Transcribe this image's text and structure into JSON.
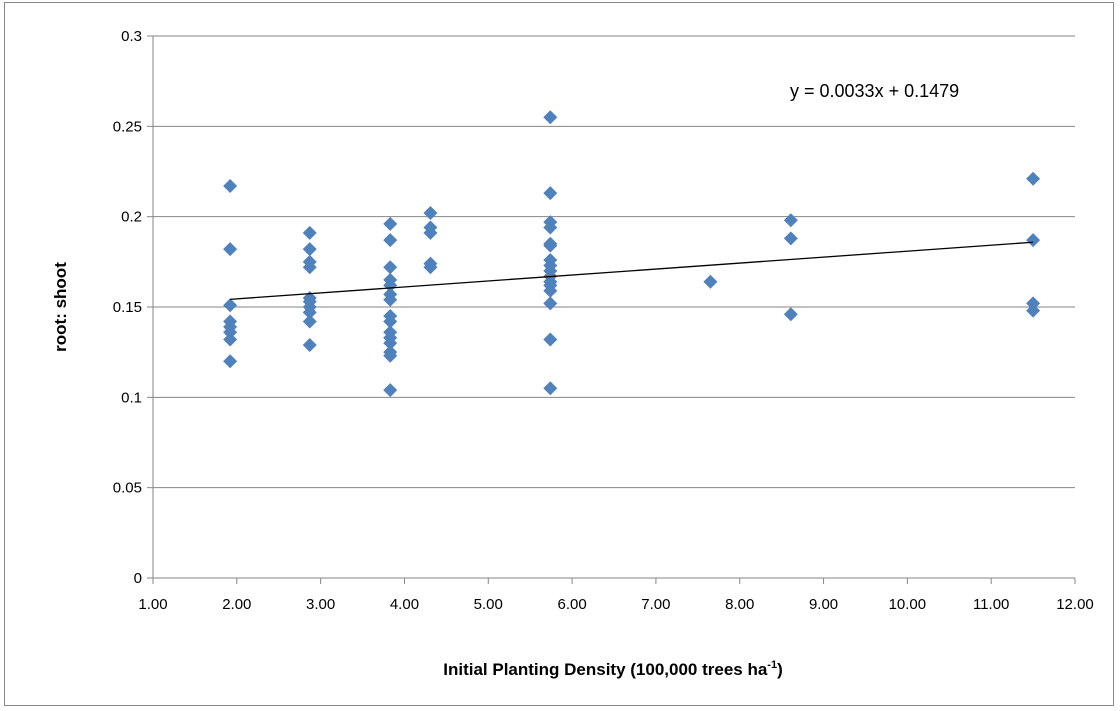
{
  "chart_data": {
    "type": "scatter",
    "title": "",
    "xlabel": {
      "main": "Initial Planting Density (100,000 trees ha",
      "superscript": "-1",
      "closing": ")"
    },
    "ylabel": "root: shoot",
    "xlim": [
      1.0,
      12.0
    ],
    "ylim": [
      0,
      0.3
    ],
    "x_ticks": [
      "1.00",
      "2.00",
      "3.00",
      "4.00",
      "5.00",
      "6.00",
      "7.00",
      "8.00",
      "9.00",
      "10.00",
      "11.00",
      "12.00"
    ],
    "y_ticks": [
      "0",
      "0.05",
      "0.1",
      "0.15",
      "0.2",
      "0.25",
      "0.3"
    ],
    "grid": "horizontal",
    "marker_color": "#4F81BD",
    "trendline": {
      "label": "y = 0.0033x + 0.1479",
      "slope": 0.0033,
      "intercept": 0.1479,
      "x_range": [
        1.92,
        11.5
      ],
      "color": "#000000"
    },
    "series": [
      {
        "points": [
          [
            1.92,
            0.217
          ],
          [
            1.92,
            0.182
          ],
          [
            1.92,
            0.151
          ],
          [
            1.92,
            0.142
          ],
          [
            1.92,
            0.139
          ],
          [
            1.92,
            0.136
          ],
          [
            1.92,
            0.132
          ],
          [
            1.92,
            0.12
          ],
          [
            2.87,
            0.191
          ],
          [
            2.87,
            0.182
          ],
          [
            2.87,
            0.175
          ],
          [
            2.87,
            0.172
          ],
          [
            2.87,
            0.155
          ],
          [
            2.87,
            0.153
          ],
          [
            2.87,
            0.15
          ],
          [
            2.87,
            0.147
          ],
          [
            2.87,
            0.142
          ],
          [
            2.87,
            0.129
          ],
          [
            3.83,
            0.196
          ],
          [
            3.83,
            0.187
          ],
          [
            3.83,
            0.172
          ],
          [
            3.83,
            0.165
          ],
          [
            3.83,
            0.162
          ],
          [
            3.83,
            0.157
          ],
          [
            3.83,
            0.154
          ],
          [
            3.83,
            0.145
          ],
          [
            3.83,
            0.142
          ],
          [
            3.83,
            0.136
          ],
          [
            3.83,
            0.133
          ],
          [
            3.83,
            0.13
          ],
          [
            3.83,
            0.125
          ],
          [
            3.83,
            0.123
          ],
          [
            3.83,
            0.104
          ],
          [
            4.31,
            0.202
          ],
          [
            4.31,
            0.194
          ],
          [
            4.31,
            0.191
          ],
          [
            4.31,
            0.174
          ],
          [
            4.31,
            0.172
          ],
          [
            5.74,
            0.255
          ],
          [
            5.74,
            0.213
          ],
          [
            5.74,
            0.197
          ],
          [
            5.74,
            0.194
          ],
          [
            5.74,
            0.185
          ],
          [
            5.74,
            0.184
          ],
          [
            5.74,
            0.176
          ],
          [
            5.74,
            0.173
          ],
          [
            5.74,
            0.17
          ],
          [
            5.74,
            0.167
          ],
          [
            5.74,
            0.164
          ],
          [
            5.74,
            0.162
          ],
          [
            5.74,
            0.159
          ],
          [
            5.74,
            0.152
          ],
          [
            5.74,
            0.132
          ],
          [
            5.74,
            0.105
          ],
          [
            7.65,
            0.164
          ],
          [
            8.61,
            0.198
          ],
          [
            8.61,
            0.188
          ],
          [
            8.61,
            0.146
          ],
          [
            11.5,
            0.221
          ],
          [
            11.5,
            0.187
          ],
          [
            11.5,
            0.152
          ],
          [
            11.5,
            0.148
          ]
        ]
      }
    ]
  }
}
